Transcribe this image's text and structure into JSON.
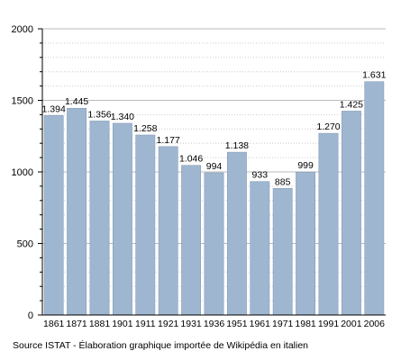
{
  "chart_data": {
    "type": "bar",
    "categories": [
      "1861",
      "1871",
      "1881",
      "1901",
      "1911",
      "1921",
      "1931",
      "1936",
      "1951",
      "1961",
      "1971",
      "1981",
      "1991",
      "2001",
      "2006"
    ],
    "values": [
      1394,
      1445,
      1356,
      1340,
      1258,
      1177,
      1046,
      994,
      1138,
      933,
      885,
      999,
      1270,
      1425,
      1631
    ],
    "value_labels": [
      "1.394",
      "1.445",
      "1.356",
      "1.340",
      "1.258",
      "1.177",
      "1.046",
      "994",
      "1.138",
      "933",
      "885",
      "999",
      "1.270",
      "1.425",
      "1.631"
    ],
    "y_ticks": [
      0,
      500,
      1000,
      1500,
      2000
    ],
    "ylim": [
      0,
      2000
    ],
    "grid": true,
    "bar_color": "#9fb6d0",
    "bar_edge_color": "#7f96b2"
  },
  "source_text": "Source ISTAT - Élaboration graphique importée de Wikipédia en italien"
}
